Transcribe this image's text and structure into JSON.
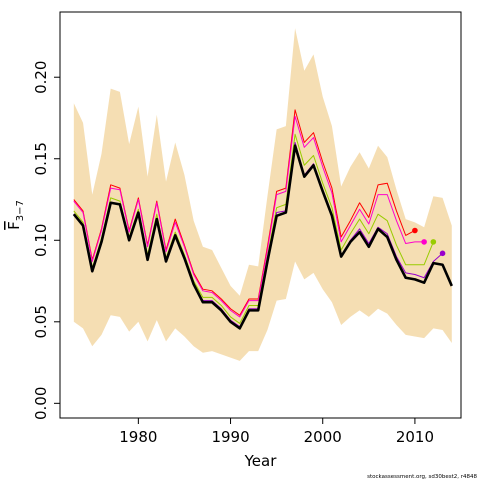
{
  "chart_data": {
    "type": "line",
    "xlabel": "Year",
    "ylabel": "F",
    "ylabel_sub": "3−7",
    "credit": "stockassessment.org, sd30best2, r4848",
    "xlim": [
      1971.5,
      2015.0
    ],
    "ylim": [
      -0.009,
      0.24
    ],
    "x_ticks": [
      1980,
      1990,
      2000,
      2010
    ],
    "x_tick_labels": [
      "1980",
      "1990",
      "2000",
      "2010"
    ],
    "y_ticks": [
      0.0,
      0.05,
      0.1,
      0.15,
      0.2
    ],
    "y_tick_labels": [
      "0.00",
      "0.05",
      "0.10",
      "0.15",
      "0.20"
    ],
    "band_color": "#f5deb3",
    "x": [
      1973,
      1974,
      1975,
      1976,
      1977,
      1978,
      1979,
      1980,
      1981,
      1982,
      1983,
      1984,
      1985,
      1986,
      1987,
      1988,
      1989,
      1990,
      1991,
      1992,
      1993,
      1994,
      1995,
      1996,
      1997,
      1998,
      1999,
      2000,
      2001,
      2002,
      2003,
      2004,
      2005,
      2006,
      2007,
      2008,
      2009,
      2010,
      2011,
      2012,
      2013,
      2014
    ],
    "band_upper": [
      0.184,
      0.172,
      0.128,
      0.153,
      0.193,
      0.191,
      0.159,
      0.182,
      0.139,
      0.177,
      0.136,
      0.16,
      0.14,
      0.112,
      0.096,
      0.094,
      0.083,
      0.072,
      0.066,
      0.085,
      0.084,
      0.127,
      0.168,
      0.17,
      0.23,
      0.204,
      0.214,
      0.188,
      0.17,
      0.133,
      0.145,
      0.154,
      0.144,
      0.158,
      0.151,
      0.131,
      0.113,
      0.111,
      0.108,
      0.127,
      0.126,
      0.109
    ],
    "band_lower": [
      0.05,
      0.046,
      0.035,
      0.042,
      0.054,
      0.053,
      0.044,
      0.05,
      0.038,
      0.051,
      0.038,
      0.046,
      0.041,
      0.035,
      0.031,
      0.032,
      0.03,
      0.028,
      0.026,
      0.032,
      0.032,
      0.045,
      0.063,
      0.064,
      0.087,
      0.076,
      0.08,
      0.07,
      0.062,
      0.048,
      0.053,
      0.057,
      0.053,
      0.058,
      0.055,
      0.048,
      0.042,
      0.041,
      0.04,
      0.046,
      0.045,
      0.037
    ],
    "series": [
      {
        "color": "#ff0000",
        "x": [
          1973,
          1974,
          1975,
          1976,
          1977,
          1978,
          1979,
          1980,
          1981,
          1982,
          1983,
          1984,
          1985,
          1986,
          1987,
          1988,
          1989,
          1990,
          1991,
          1992,
          1993,
          1994,
          1995,
          1996,
          1997,
          1998,
          1999,
          2000,
          2001,
          2002,
          2003,
          2004,
          2005,
          2006,
          2007,
          2008,
          2009,
          2010
        ],
        "values": [
          0.125,
          0.118,
          0.088,
          0.107,
          0.134,
          0.132,
          0.106,
          0.126,
          0.097,
          0.124,
          0.094,
          0.113,
          0.097,
          0.08,
          0.07,
          0.069,
          0.064,
          0.058,
          0.054,
          0.064,
          0.064,
          0.096,
          0.13,
          0.132,
          0.18,
          0.16,
          0.166,
          0.148,
          0.132,
          0.102,
          0.112,
          0.123,
          0.114,
          0.134,
          0.135,
          0.118,
          0.103,
          0.106
        ],
        "end_point": [
          2010,
          0.106
        ]
      },
      {
        "color": "#ff00cc",
        "x": [
          1973,
          1974,
          1975,
          1976,
          1977,
          1978,
          1979,
          1980,
          1981,
          1982,
          1983,
          1984,
          1985,
          1986,
          1987,
          1988,
          1989,
          1990,
          1991,
          1992,
          1993,
          1994,
          1995,
          1996,
          1997,
          1998,
          1999,
          2000,
          2001,
          2002,
          2003,
          2004,
          2005,
          2006,
          2007,
          2008,
          2009,
          2010,
          2011
        ],
        "values": [
          0.124,
          0.117,
          0.087,
          0.106,
          0.132,
          0.131,
          0.105,
          0.125,
          0.096,
          0.123,
          0.093,
          0.111,
          0.096,
          0.079,
          0.069,
          0.068,
          0.063,
          0.057,
          0.053,
          0.063,
          0.063,
          0.094,
          0.128,
          0.13,
          0.176,
          0.157,
          0.163,
          0.145,
          0.129,
          0.099,
          0.109,
          0.119,
          0.11,
          0.128,
          0.128,
          0.112,
          0.098,
          0.099,
          0.099
        ],
        "end_point": [
          2011,
          0.099
        ]
      },
      {
        "color": "#99cc00",
        "x": [
          1973,
          1974,
          1975,
          1976,
          1977,
          1978,
          1979,
          1980,
          1981,
          1982,
          1983,
          1984,
          1985,
          1986,
          1987,
          1988,
          1989,
          1990,
          1991,
          1992,
          1993,
          1994,
          1995,
          1996,
          1997,
          1998,
          1999,
          2000,
          2001,
          2002,
          2003,
          2004,
          2005,
          2006,
          2007,
          2008,
          2009,
          2010,
          2011,
          2012
        ],
        "values": [
          0.118,
          0.111,
          0.083,
          0.101,
          0.126,
          0.124,
          0.102,
          0.119,
          0.091,
          0.116,
          0.089,
          0.105,
          0.091,
          0.075,
          0.065,
          0.065,
          0.06,
          0.053,
          0.049,
          0.06,
          0.06,
          0.09,
          0.12,
          0.122,
          0.165,
          0.146,
          0.152,
          0.135,
          0.12,
          0.094,
          0.104,
          0.113,
          0.104,
          0.116,
          0.112,
          0.097,
          0.085,
          0.085,
          0.085,
          0.099
        ],
        "end_point": [
          2012,
          0.099
        ]
      },
      {
        "color": "#9900cc",
        "x": [
          1973,
          1974,
          1975,
          1976,
          1977,
          1978,
          1979,
          1980,
          1981,
          1982,
          1983,
          1984,
          1985,
          1986,
          1987,
          1988,
          1989,
          1990,
          1991,
          1992,
          1993,
          1994,
          1995,
          1996,
          1997,
          1998,
          1999,
          2000,
          2001,
          2002,
          2003,
          2004,
          2005,
          2006,
          2007,
          2008,
          2009,
          2010,
          2011,
          2012,
          2013
        ],
        "values": [
          0.116,
          0.109,
          0.081,
          0.099,
          0.123,
          0.122,
          0.1,
          0.117,
          0.089,
          0.113,
          0.087,
          0.103,
          0.089,
          0.073,
          0.063,
          0.063,
          0.058,
          0.051,
          0.047,
          0.058,
          0.058,
          0.088,
          0.117,
          0.118,
          0.16,
          0.14,
          0.147,
          0.13,
          0.115,
          0.09,
          0.1,
          0.107,
          0.098,
          0.108,
          0.104,
          0.09,
          0.08,
          0.079,
          0.077,
          0.087,
          0.092
        ],
        "end_point": [
          2013,
          0.092
        ]
      },
      {
        "color": "#000000",
        "bold": true,
        "x": [
          1973,
          1974,
          1975,
          1976,
          1977,
          1978,
          1979,
          1980,
          1981,
          1982,
          1983,
          1984,
          1985,
          1986,
          1987,
          1988,
          1989,
          1990,
          1991,
          1992,
          1993,
          1994,
          1995,
          1996,
          1997,
          1998,
          1999,
          2000,
          2001,
          2002,
          2003,
          2004,
          2005,
          2006,
          2007,
          2008,
          2009,
          2010,
          2011,
          2012,
          2013,
          2014
        ],
        "values": [
          0.116,
          0.109,
          0.081,
          0.099,
          0.123,
          0.122,
          0.1,
          0.117,
          0.088,
          0.113,
          0.087,
          0.103,
          0.089,
          0.073,
          0.062,
          0.062,
          0.057,
          0.05,
          0.046,
          0.057,
          0.057,
          0.087,
          0.115,
          0.117,
          0.158,
          0.139,
          0.146,
          0.13,
          0.115,
          0.09,
          0.099,
          0.105,
          0.096,
          0.107,
          0.102,
          0.088,
          0.077,
          0.076,
          0.074,
          0.086,
          0.085,
          0.072
        ]
      }
    ]
  }
}
